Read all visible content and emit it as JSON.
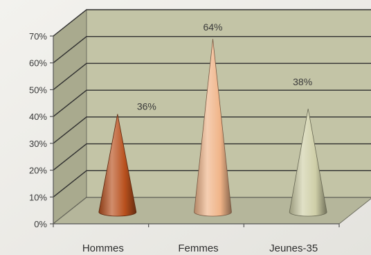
{
  "chart_data": {
    "type": "bar",
    "shape": "cone",
    "title": "",
    "xlabel": "",
    "ylabel": "",
    "categories": [
      "Hommes",
      "Femmes",
      "Jeunes-35"
    ],
    "values": [
      36,
      64,
      38
    ],
    "data_labels": [
      "36%",
      "64%",
      "38%"
    ],
    "ylim": [
      0,
      70
    ],
    "y_ticks": [
      "0%",
      "10%",
      "20%",
      "30%",
      "40%",
      "50%",
      "60%",
      "70%"
    ],
    "grid": true,
    "legend": "none",
    "colors": {
      "Hommes": "#b8501d",
      "Femmes": "#f0b488",
      "Jeunes-35": "#cfcfa8",
      "back_wall": "#c3c4a6",
      "side_wall": "#a9aa8e",
      "floor": "#b5b69b",
      "gridline": "#2f2f2f"
    }
  }
}
